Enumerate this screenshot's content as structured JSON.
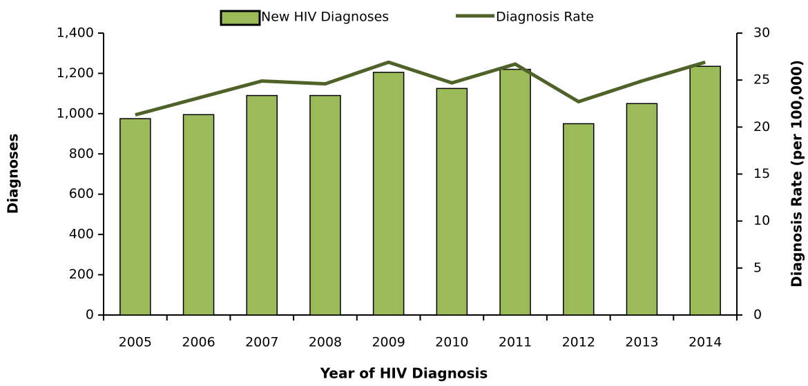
{
  "chart_data": {
    "type": "bar",
    "categories": [
      "2005",
      "2006",
      "2007",
      "2008",
      "2009",
      "2010",
      "2011",
      "2012",
      "2013",
      "2014"
    ],
    "series": [
      {
        "name": "New HIV Diagnoses",
        "type": "bar",
        "color": "#9bbb59",
        "values": [
          975,
          995,
          1090,
          1090,
          1205,
          1125,
          1220,
          950,
          1050,
          1235
        ]
      },
      {
        "name": "Diagnosis Rate",
        "type": "line",
        "axis": "y2",
        "color": "#4f6228",
        "values": [
          21.3,
          23.1,
          24.9,
          24.6,
          26.9,
          24.7,
          26.7,
          22.7,
          24.9,
          26.9
        ]
      }
    ],
    "x_label": "Year of HIV Diagnosis",
    "y_label": "Diagnoses",
    "y2_label": "Diagnosis Rate (per 100,000)",
    "ylim": [
      0,
      1400
    ],
    "yticks": [
      0,
      200,
      400,
      600,
      800,
      {
        "value": 1000,
        "label": "1,000"
      },
      {
        "value": 1200,
        "label": "1,200"
      },
      {
        "value": 1400,
        "label": "1,400"
      }
    ],
    "y2lim": [
      0,
      30
    ],
    "y2ticks": [
      0,
      5,
      10,
      15,
      20,
      25,
      30
    ],
    "legend": "top"
  }
}
